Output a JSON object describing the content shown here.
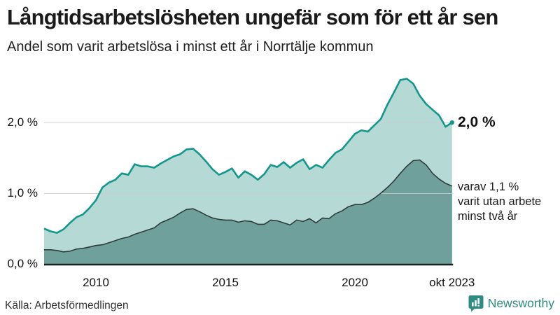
{
  "chart_data": {
    "type": "area",
    "title": "Långtidsarbetslösheten ungefär som för ett år sen",
    "subtitle": "Andel som varit arbetslösa i minst ett år i Norrtälje kommun",
    "source": "Källa: Arbetsförmedlingen",
    "unit": "%",
    "x_range": [
      2008.0,
      2023.75
    ],
    "ylim": [
      0,
      2.8
    ],
    "grid": "horizontal",
    "x": [
      2008.0,
      2008.25,
      2008.5,
      2008.75,
      2009.0,
      2009.25,
      2009.5,
      2009.75,
      2010.0,
      2010.25,
      2010.5,
      2010.75,
      2011.0,
      2011.25,
      2011.5,
      2011.75,
      2012.0,
      2012.25,
      2012.5,
      2012.75,
      2013.0,
      2013.25,
      2013.5,
      2013.75,
      2014.0,
      2014.25,
      2014.5,
      2014.75,
      2015.0,
      2015.25,
      2015.5,
      2015.75,
      2016.0,
      2016.25,
      2016.5,
      2016.75,
      2017.0,
      2017.25,
      2017.5,
      2017.75,
      2018.0,
      2018.25,
      2018.5,
      2018.75,
      2019.0,
      2019.25,
      2019.5,
      2019.75,
      2020.0,
      2020.25,
      2020.5,
      2020.75,
      2021.0,
      2021.25,
      2021.5,
      2021.75,
      2022.0,
      2022.25,
      2022.5,
      2022.75,
      2023.0,
      2023.25,
      2023.5,
      2023.75
    ],
    "series": [
      {
        "name": "Andel som varit arbetslösa i minst ett år",
        "end_label": "2,0 %",
        "line_color": "#12978c",
        "fill_color": "#b5dad6",
        "values": [
          0.5,
          0.46,
          0.44,
          0.49,
          0.58,
          0.66,
          0.7,
          0.79,
          0.9,
          1.08,
          1.15,
          1.19,
          1.28,
          1.26,
          1.41,
          1.38,
          1.38,
          1.36,
          1.42,
          1.47,
          1.52,
          1.55,
          1.62,
          1.63,
          1.55,
          1.45,
          1.34,
          1.26,
          1.3,
          1.35,
          1.22,
          1.31,
          1.26,
          1.19,
          1.27,
          1.4,
          1.37,
          1.44,
          1.36,
          1.43,
          1.48,
          1.34,
          1.4,
          1.36,
          1.47,
          1.57,
          1.62,
          1.73,
          1.84,
          1.89,
          1.87,
          1.96,
          2.05,
          2.25,
          2.42,
          2.6,
          2.62,
          2.55,
          2.38,
          2.26,
          2.18,
          2.1,
          1.94,
          2.0
        ]
      },
      {
        "name": "varav utan arbete minst två år",
        "end_label": [
          "varav 1,1 %",
          "varit utan arbete",
          "minst två år"
        ],
        "line_color": "#2e3c3a",
        "fill_color": "#6fa09b",
        "values": [
          0.2,
          0.2,
          0.19,
          0.17,
          0.18,
          0.21,
          0.22,
          0.24,
          0.26,
          0.27,
          0.3,
          0.33,
          0.36,
          0.38,
          0.42,
          0.45,
          0.48,
          0.51,
          0.58,
          0.62,
          0.66,
          0.72,
          0.77,
          0.78,
          0.74,
          0.69,
          0.65,
          0.63,
          0.62,
          0.62,
          0.59,
          0.61,
          0.6,
          0.56,
          0.56,
          0.62,
          0.61,
          0.58,
          0.55,
          0.62,
          0.6,
          0.64,
          0.58,
          0.65,
          0.64,
          0.71,
          0.75,
          0.81,
          0.84,
          0.84,
          0.87,
          0.93,
          1.0,
          1.08,
          1.17,
          1.28,
          1.38,
          1.46,
          1.47,
          1.4,
          1.28,
          1.2,
          1.14,
          1.1
        ]
      }
    ],
    "x_ticks": [
      {
        "label": "2010",
        "year": 2010
      },
      {
        "label": "2015",
        "year": 2015
      },
      {
        "label": "2020",
        "year": 2020
      },
      {
        "label": "okt 2023",
        "year": 2023.75
      }
    ],
    "y_ticks": [
      {
        "label": "0,0 %",
        "value": 0
      },
      {
        "label": "1,0 %",
        "value": 1
      },
      {
        "label": "2,0 %",
        "value": 2
      }
    ],
    "colors": {
      "grid": "#cccccc",
      "baseline": "#1f1f1f",
      "text": "#111111"
    }
  },
  "footer": {
    "brand": "Newsworthy",
    "brand_color": "#2e8c82"
  }
}
